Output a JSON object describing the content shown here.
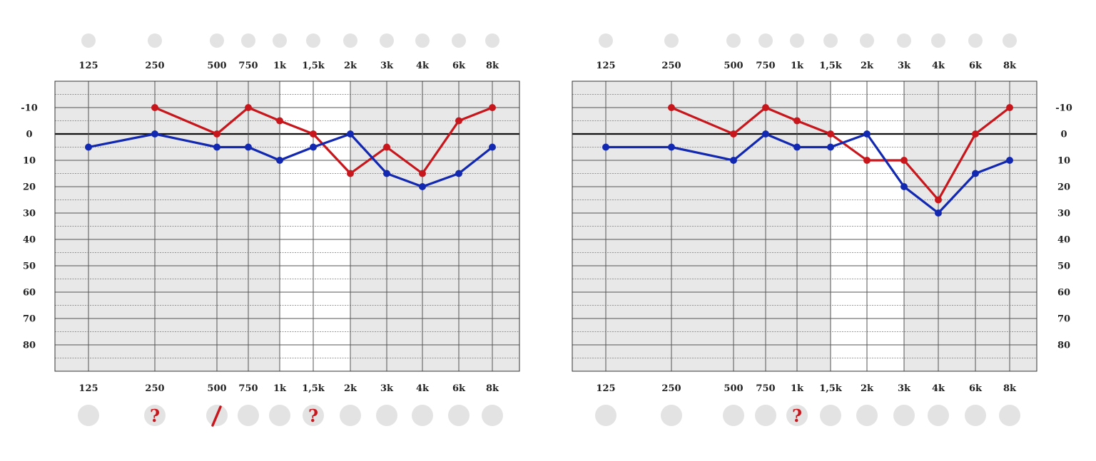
{
  "chart_data": [
    {
      "type": "line",
      "x_ticks": [
        "125",
        "250",
        "500",
        "750",
        "1k",
        "1,5k",
        "2k",
        "3k",
        "4k",
        "6k",
        "8k"
      ],
      "y_ticks": [
        "-10",
        "0",
        "10",
        "20",
        "30",
        "40",
        "50",
        "60",
        "70",
        "80"
      ],
      "ylim": [
        -20,
        90
      ],
      "y_inverted": true,
      "grid": true,
      "highlight_band": [
        "1k",
        "2k"
      ],
      "series": [
        {
          "color": "#c8171c",
          "x": [
            "250",
            "500",
            "750",
            "1k",
            "1,5k",
            "2k",
            "3k",
            "4k",
            "6k",
            "8k"
          ],
          "values": [
            -10,
            0,
            -10,
            -5,
            0,
            15,
            5,
            15,
            -5,
            -10
          ]
        },
        {
          "color": "#1228b0",
          "x": [
            "125",
            "250",
            "500",
            "750",
            "1k",
            "1,5k",
            "2k",
            "3k",
            "4k",
            "6k",
            "8k"
          ],
          "values": [
            5,
            0,
            5,
            5,
            10,
            5,
            0,
            15,
            20,
            15,
            5
          ]
        }
      ],
      "bottom_marks": [
        {
          "x": "250",
          "symbol": "?"
        },
        {
          "x": "500",
          "symbol": "/"
        },
        {
          "x": "1,5k",
          "symbol": "?"
        }
      ]
    },
    {
      "type": "line",
      "x_ticks": [
        "125",
        "250",
        "500",
        "750",
        "1k",
        "1,5k",
        "2k",
        "3k",
        "4k",
        "6k",
        "8k"
      ],
      "y_ticks": [
        "-10",
        "0",
        "10",
        "20",
        "30",
        "40",
        "50",
        "60",
        "70",
        "80"
      ],
      "ylim": [
        -20,
        90
      ],
      "y_inverted": true,
      "grid": true,
      "highlight_band": [
        "1,5k",
        "3k"
      ],
      "series": [
        {
          "color": "#c8171c",
          "x": [
            "250",
            "500",
            "750",
            "1k",
            "1,5k",
            "2k",
            "3k",
            "4k",
            "6k",
            "8k"
          ],
          "values": [
            -10,
            0,
            -10,
            -5,
            0,
            10,
            10,
            25,
            0,
            -10
          ]
        },
        {
          "color": "#1228b0",
          "x": [
            "125",
            "250",
            "500",
            "750",
            "1k",
            "1,5k",
            "2k",
            "3k",
            "4k",
            "6k",
            "8k"
          ],
          "values": [
            5,
            5,
            10,
            0,
            5,
            5,
            0,
            20,
            30,
            15,
            10
          ]
        }
      ],
      "bottom_marks": [
        {
          "x": "1k",
          "symbol": "?"
        }
      ]
    }
  ]
}
